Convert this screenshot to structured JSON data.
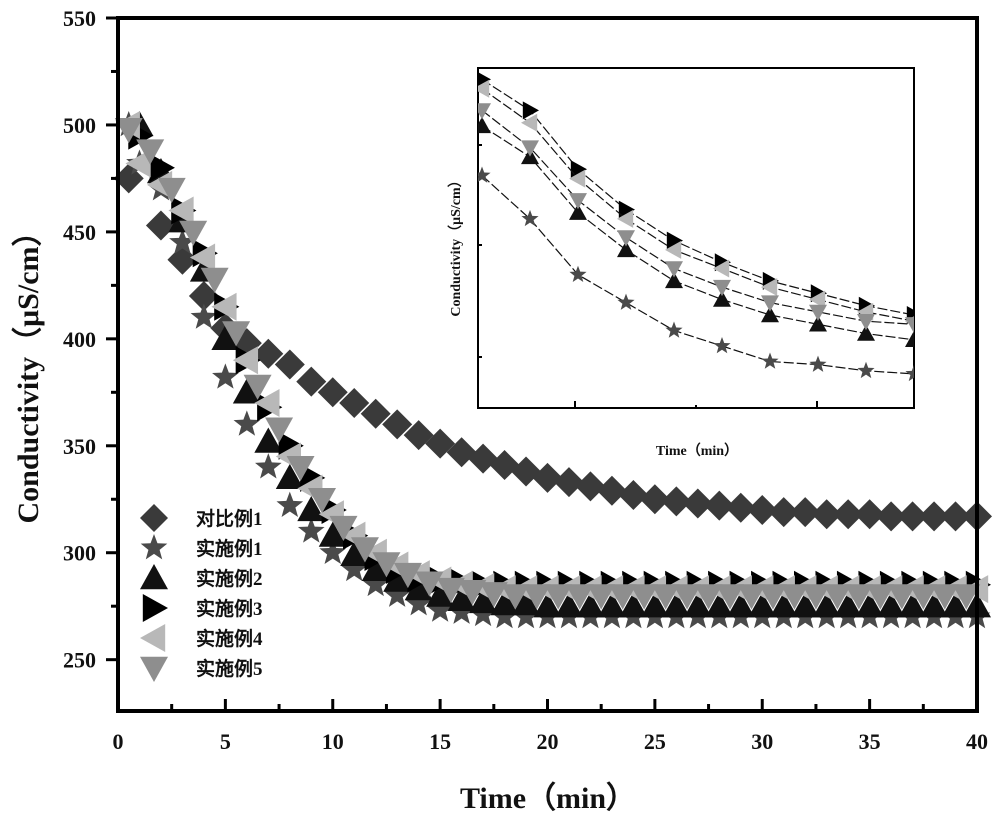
{
  "chart_data": [
    {
      "type": "scatter",
      "role": "main",
      "title": "",
      "xlabel": "Time（min）",
      "ylabel": "Conductivity（μS/cm）",
      "xlim": [
        0,
        40
      ],
      "ylim": [
        226,
        550
      ],
      "xticks": [
        0,
        5,
        10,
        15,
        20,
        25,
        30,
        35,
        40
      ],
      "yticks": [
        250,
        300,
        350,
        400,
        450,
        500,
        550
      ],
      "xtick_labels": [
        "0",
        "5",
        "10",
        "15",
        "20",
        "25",
        "30",
        "35",
        "40"
      ],
      "ytick_labels": [
        "250",
        "300",
        "350",
        "400",
        "450",
        "500",
        "550"
      ],
      "grid": false,
      "legend_position": "bottom-left",
      "series": [
        {
          "name": "对比例1",
          "marker": "diamond",
          "color": "#3a3a3a",
          "x": [
            0.5,
            2,
            3,
            4,
            5,
            6,
            7,
            8,
            9,
            10,
            11,
            12,
            13,
            14,
            15,
            16,
            17,
            18,
            19,
            20,
            21,
            22,
            23,
            24,
            25,
            26,
            27,
            28,
            29,
            30,
            31,
            32,
            33,
            34,
            35,
            36,
            37,
            38,
            39,
            40
          ],
          "y": [
            475,
            453,
            437,
            420,
            405,
            398,
            393,
            388,
            380,
            375,
            370,
            365,
            360,
            355,
            351,
            347,
            344,
            341,
            338,
            335,
            333,
            331,
            329,
            327,
            325,
            324,
            323,
            322,
            321,
            320,
            319,
            319,
            318,
            318,
            318,
            317,
            317,
            317,
            317,
            317
          ]
        },
        {
          "name": "实施例1",
          "marker": "star",
          "color": "#4a4a4a",
          "x": [
            0.5,
            1,
            2,
            3,
            4,
            5,
            6,
            7,
            8,
            9,
            10,
            11,
            12,
            13,
            14,
            15,
            16,
            17,
            18,
            19,
            20,
            21,
            22,
            23,
            24,
            25,
            26,
            27,
            28,
            29,
            30,
            31,
            32,
            33,
            34,
            35,
            36,
            37,
            38,
            39,
            40
          ],
          "y": [
            500,
            482,
            470,
            445,
            410,
            382,
            360,
            340,
            322,
            310,
            300,
            292,
            285,
            280,
            276,
            273,
            272,
            271,
            270,
            270,
            270,
            270,
            270,
            270,
            270,
            270,
            270,
            270,
            270,
            270,
            270,
            270,
            270,
            270,
            270,
            270,
            270,
            270,
            270,
            270,
            270
          ]
        },
        {
          "name": "实施例2",
          "marker": "triangle-up",
          "color": "#111111",
          "x": [
            1,
            2,
            3,
            4,
            5,
            6,
            7,
            8,
            9,
            10,
            11,
            12,
            13,
            14,
            15,
            16,
            17,
            18,
            19,
            20,
            21,
            22,
            23,
            24,
            25,
            26,
            27,
            28,
            29,
            30,
            31,
            32,
            33,
            34,
            35,
            36,
            37,
            38,
            39,
            40
          ],
          "y": [
            500,
            478,
            455,
            432,
            400,
            375,
            352,
            335,
            320,
            308,
            299,
            292,
            287,
            283,
            280,
            278,
            277,
            276,
            276,
            275,
            275,
            275,
            275,
            275,
            275,
            275,
            275,
            275,
            275,
            275,
            275,
            275,
            275,
            275,
            275,
            275,
            275,
            275,
            275,
            275
          ]
        },
        {
          "name": "实施例3",
          "marker": "triangle-right",
          "color": "#000000",
          "x": [
            1,
            2,
            3,
            4,
            5,
            6,
            7,
            8,
            9,
            10,
            11,
            12,
            13,
            14,
            15,
            16,
            17,
            18,
            19,
            20,
            21,
            22,
            23,
            24,
            25,
            26,
            27,
            28,
            29,
            30,
            31,
            32,
            33,
            34,
            35,
            36,
            37,
            38,
            39,
            40
          ],
          "y": [
            495,
            480,
            460,
            440,
            415,
            390,
            368,
            350,
            335,
            320,
            308,
            298,
            292,
            288,
            287,
            286,
            285,
            285,
            285,
            285,
            285,
            285,
            285,
            285,
            285,
            285,
            285,
            285,
            285,
            285,
            285,
            285,
            285,
            285,
            285,
            285,
            285,
            285,
            285,
            285
          ]
        },
        {
          "name": "实施例4",
          "marker": "triangle-left",
          "color": "#b8b8b8",
          "x": [
            0.5,
            1,
            2,
            3,
            4,
            5,
            6,
            7,
            8,
            9,
            10,
            11,
            12,
            13,
            14,
            15,
            16,
            17,
            18,
            19,
            20,
            21,
            22,
            23,
            24,
            25,
            26,
            27,
            28,
            29,
            30,
            31,
            32,
            33,
            34,
            35,
            36,
            37,
            38,
            39,
            40
          ],
          "y": [
            500,
            482,
            472,
            460,
            438,
            415,
            390,
            370,
            345,
            330,
            318,
            308,
            300,
            294,
            290,
            287,
            285,
            284,
            283,
            283,
            283,
            283,
            283,
            283,
            283,
            283,
            283,
            283,
            283,
            283,
            283,
            283,
            283,
            283,
            283,
            283,
            283,
            283,
            283,
            283,
            283
          ]
        },
        {
          "name": "实施例5",
          "marker": "triangle-down",
          "color": "#8e8e8e",
          "x": [
            0.5,
            1.5,
            2.5,
            3.5,
            4.5,
            5.5,
            6.5,
            7.5,
            8.5,
            9.5,
            10.5,
            11.5,
            12.5,
            13.5,
            14.5,
            15.5,
            16.5,
            17.5,
            18.5,
            19.5,
            20.5,
            21.5,
            22.5,
            23.5,
            24.5,
            25.5,
            26.5,
            27.5,
            28.5,
            29.5,
            30.5,
            31.5,
            32.5,
            33.5,
            34.5,
            35.5,
            36.5,
            37.5,
            38.5,
            39.5
          ],
          "y": [
            498,
            488,
            470,
            450,
            428,
            403,
            378,
            358,
            340,
            325,
            312,
            302,
            295,
            290,
            286,
            283,
            282,
            281,
            280,
            280,
            280,
            280,
            280,
            280,
            280,
            280,
            280,
            280,
            280,
            280,
            280,
            280,
            280,
            280,
            280,
            280,
            280,
            280,
            280,
            280
          ]
        }
      ]
    },
    {
      "type": "line",
      "role": "inset",
      "xlabel": "Time（min）",
      "ylabel": "Conductivity（μS/cm）",
      "xlim": [
        0,
        9
      ],
      "ylim": [
        0,
        100
      ],
      "grid": false,
      "series": [
        {
          "name": "实施例1",
          "marker": "star",
          "x": [
            0,
            1,
            2,
            3,
            4,
            5,
            6,
            7,
            8,
            9
          ],
          "y": [
            75,
            61,
            43,
            34,
            25,
            20,
            15,
            14,
            12,
            11
          ]
        },
        {
          "name": "实施例2",
          "marker": "triangle-up",
          "x": [
            0,
            1,
            2,
            3,
            4,
            5,
            6,
            7,
            8,
            9
          ],
          "y": [
            91,
            81,
            63,
            51,
            41,
            35,
            30,
            27,
            24,
            22
          ]
        },
        {
          "name": "实施例3",
          "marker": "triangle-right",
          "x": [
            0,
            1,
            2,
            3,
            4,
            5,
            6,
            7,
            8,
            9
          ],
          "y": [
            106,
            96,
            77,
            64,
            54,
            47,
            41,
            37,
            33,
            30
          ]
        },
        {
          "name": "实施例4",
          "marker": "triangle-left",
          "x": [
            0,
            1,
            2,
            3,
            4,
            5,
            6,
            7,
            8,
            9
          ],
          "y": [
            103,
            92,
            74,
            61,
            51,
            45,
            39,
            35,
            31,
            28
          ]
        },
        {
          "name": "实施例5",
          "marker": "triangle-down",
          "x": [
            0,
            1,
            2,
            3,
            4,
            5,
            6,
            7,
            8,
            9
          ],
          "y": [
            96,
            84,
            67,
            55,
            45,
            39,
            34,
            31,
            28,
            27
          ]
        }
      ]
    }
  ],
  "labels": {
    "xlabel": "Time（min）",
    "ylabel": "Conductivity（μS/cm）",
    "inset_xlabel": "Time（min）",
    "inset_ylabel": "Conductivity（μS/cm）"
  }
}
